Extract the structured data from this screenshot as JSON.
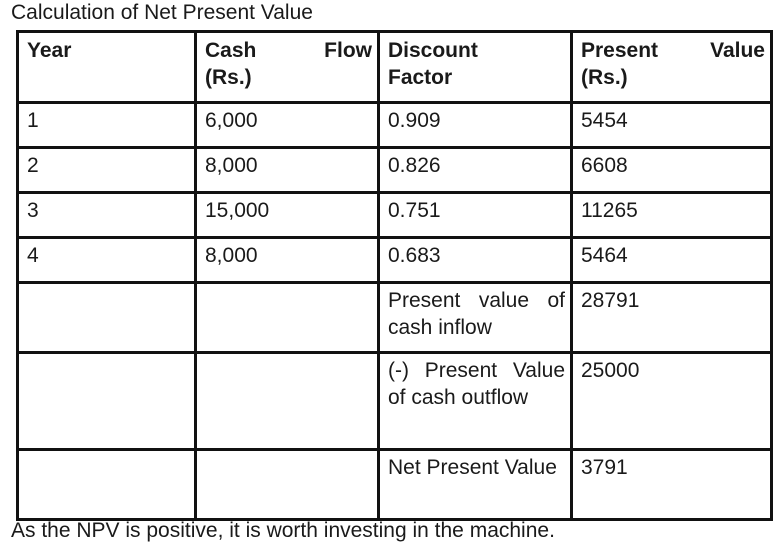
{
  "caption": "Calculation of Net Present Value",
  "table": {
    "headers": {
      "year": "Year",
      "cash_flow_word1": "Cash",
      "cash_flow_word2": "Flow",
      "cash_flow_unit": "(Rs.)",
      "discount_line1": "Discount",
      "discount_line2": "Factor",
      "present_value_line1": "Present Value",
      "present_value_unit": "(Rs.)"
    },
    "rows": [
      {
        "year": "1",
        "cash_flow": "6,000",
        "discount_factor": "0.909",
        "present_value": "5454"
      },
      {
        "year": "2",
        "cash_flow": "8,000",
        "discount_factor": "0.826",
        "present_value": "6608"
      },
      {
        "year": "3",
        "cash_flow": "15,000",
        "discount_factor": "0.751",
        "present_value": "11265"
      },
      {
        "year": "4",
        "cash_flow": "8,000",
        "discount_factor": "0.683",
        "present_value": "5464"
      }
    ],
    "summary": {
      "pv_inflow_label": "Present value of cash inflow",
      "pv_inflow_value": "28791",
      "pv_outflow_label": "(-) Present Value of cash outflow",
      "pv_outflow_value": "25000",
      "npv_label": "Net Present Value",
      "npv_value": "3791"
    }
  },
  "conclusion": "As the NPV is positive, it is worth investing in the machine."
}
